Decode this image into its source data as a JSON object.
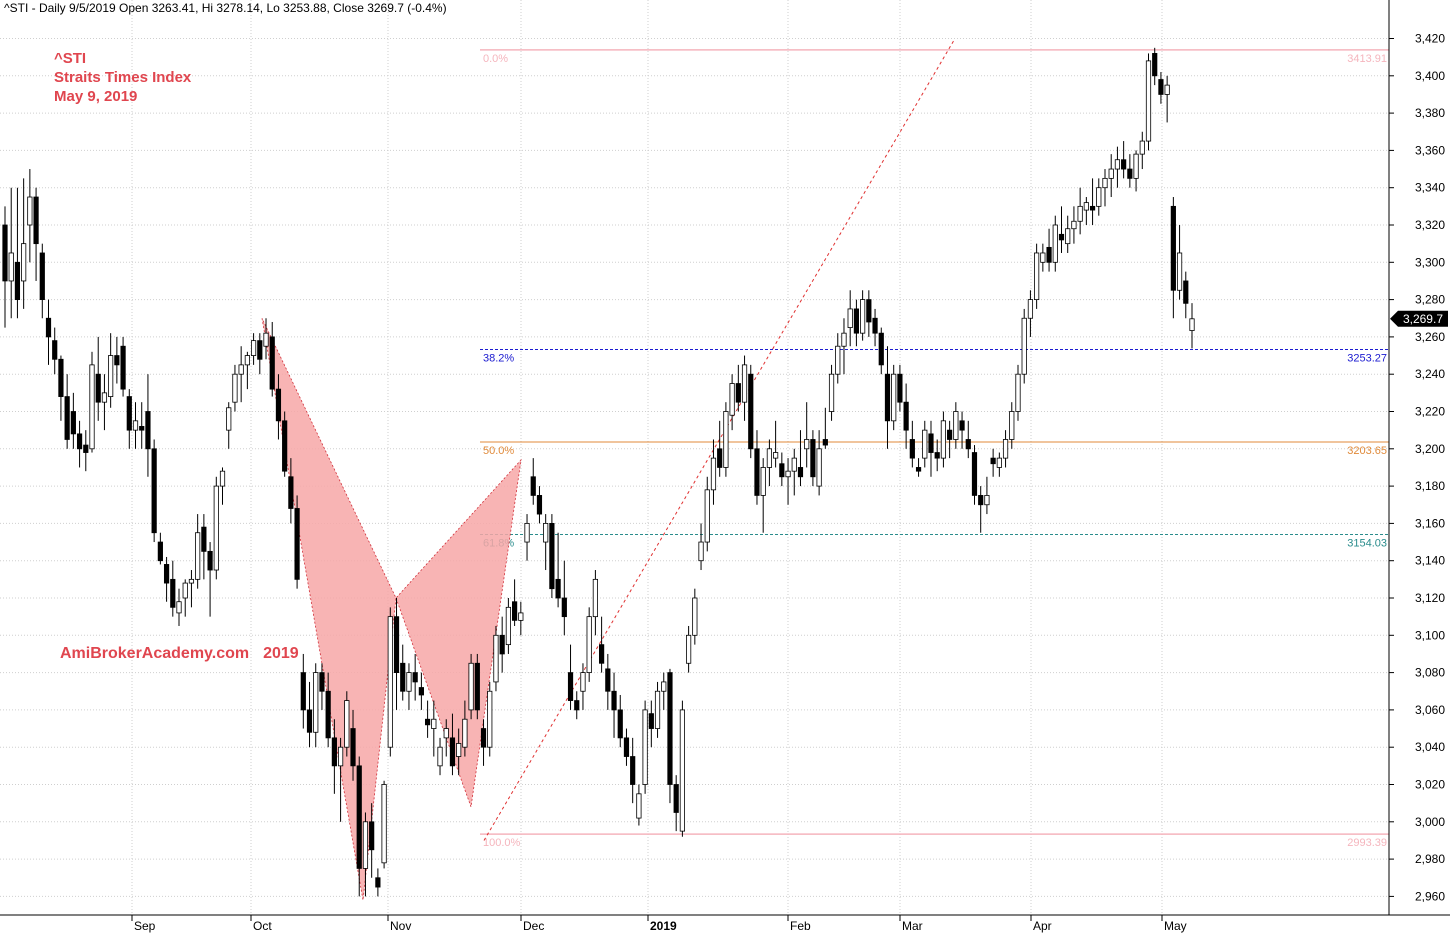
{
  "header": {
    "text": "^STI - Daily 9/5/2019 Open 3263.41, Hi 3278.14, Lo 3253.88, Close 3269.7 (-0.4%)"
  },
  "annotations": {
    "symbol": "^STI",
    "name": "Straits Times Index",
    "date": "May 9, 2019",
    "watermark_site": "AmiBrokerAcademy.com",
    "watermark_year": "2019"
  },
  "colors": {
    "up_candle": "#ffffff",
    "down_candle": "#000000",
    "fib_0_100": "#f5b5bd",
    "fib_382": "#1c1cd0",
    "fib_50": "#e08a3a",
    "fib_618": "#2a8c8c",
    "pattern_fill": "#f7a7a7",
    "pattern_line": "#d0303a",
    "annotation_text": "#e0464f"
  },
  "chart_data": {
    "type": "candlestick",
    "x_labels": [
      "Sep",
      "Oct",
      "Nov",
      "Dec",
      "2019",
      "Feb",
      "Mar",
      "Apr",
      "May"
    ],
    "y_ticks": [
      2960,
      2980,
      3000,
      3020,
      3040,
      3060,
      3080,
      3100,
      3120,
      3140,
      3160,
      3180,
      3200,
      3220,
      3240,
      3260,
      3280,
      3300,
      3320,
      3340,
      3360,
      3380,
      3400,
      3420
    ],
    "y_tick_labels": [
      "2,960",
      "2,980",
      "3,000",
      "3,020",
      "3,040",
      "3,060",
      "3,080",
      "3,100",
      "3,120",
      "3,140",
      "3,160",
      "3,180",
      "3,200",
      "3,220",
      "3,240",
      "3,260",
      "3,280",
      "3,300",
      "3,320",
      "3,340",
      "3,360",
      "3,380",
      "3,400",
      "3,420"
    ],
    "ylim": [
      2946,
      3427
    ],
    "grid": true,
    "last_close_label": "3,269.7",
    "last_close": 3269.7,
    "fibonacci": [
      {
        "pct": "0.0%",
        "value": 3413.91,
        "value_label": "3413.91"
      },
      {
        "pct": "38.2%",
        "value": 3253.27,
        "value_label": "3253.27"
      },
      {
        "pct": "50.0%",
        "value": 3203.65,
        "value_label": "3203.65"
      },
      {
        "pct": "61.8%",
        "value": 3154.03,
        "value_label": "3154.03"
      },
      {
        "pct": "100.0%",
        "value": 2993.39,
        "value_label": "2993.39"
      }
    ],
    "candles": [
      [
        3320,
        3330,
        3265,
        3290
      ],
      [
        3290,
        3340,
        3270,
        3305
      ],
      [
        3300,
        3340,
        3270,
        3280
      ],
      [
        3290,
        3345,
        3275,
        3310
      ],
      [
        3320,
        3350,
        3300,
        3335
      ],
      [
        3335,
        3340,
        3290,
        3310
      ],
      [
        3305,
        3310,
        3270,
        3280
      ],
      [
        3270,
        3280,
        3245,
        3260
      ],
      [
        3258,
        3265,
        3240,
        3248
      ],
      [
        3248,
        3250,
        3215,
        3228
      ],
      [
        3228,
        3240,
        3200,
        3205
      ],
      [
        3220,
        3230,
        3200,
        3208
      ],
      [
        3208,
        3215,
        3190,
        3200
      ],
      [
        3202,
        3210,
        3188,
        3198
      ],
      [
        3200,
        3252,
        3198,
        3245
      ],
      [
        3240,
        3260,
        3215,
        3225
      ],
      [
        3225,
        3240,
        3210,
        3230
      ],
      [
        3228,
        3262,
        3222,
        3250
      ],
      [
        3250,
        3260,
        3235,
        3245
      ],
      [
        3255,
        3260,
        3228,
        3232
      ],
      [
        3228,
        3232,
        3200,
        3210
      ],
      [
        3210,
        3225,
        3200,
        3215
      ],
      [
        3212,
        3225,
        3200,
        3210
      ],
      [
        3220,
        3240,
        3185,
        3200
      ],
      [
        3200,
        3205,
        3150,
        3155
      ],
      [
        3150,
        3155,
        3138,
        3140
      ],
      [
        3138,
        3142,
        3118,
        3128
      ],
      [
        3130,
        3140,
        3110,
        3115
      ],
      [
        3112,
        3125,
        3105,
        3118
      ],
      [
        3120,
        3130,
        3110,
        3128
      ],
      [
        3128,
        3135,
        3115,
        3130
      ],
      [
        3130,
        3165,
        3125,
        3155
      ],
      [
        3158,
        3165,
        3130,
        3145
      ],
      [
        3145,
        3150,
        3110,
        3135
      ],
      [
        3135,
        3185,
        3130,
        3180
      ],
      [
        3180,
        3190,
        3170,
        3188
      ],
      [
        3210,
        3225,
        3200,
        3222
      ],
      [
        3225,
        3245,
        3220,
        3240
      ],
      [
        3240,
        3255,
        3225,
        3245
      ],
      [
        3245,
        3252,
        3232,
        3250
      ],
      [
        3250,
        3262,
        3245,
        3258
      ],
      [
        3258,
        3262,
        3240,
        3248
      ],
      [
        3255,
        3270,
        3248,
        3262
      ],
      [
        3260,
        3268,
        3228,
        3232
      ],
      [
        3232,
        3240,
        3205,
        3215
      ],
      [
        3215,
        3220,
        3185,
        3188
      ],
      [
        3185,
        3195,
        3160,
        3168
      ],
      [
        3168,
        3175,
        3125,
        3130
      ],
      [
        3080,
        3090,
        3050,
        3060
      ],
      [
        3060,
        3075,
        3040,
        3048
      ],
      [
        3048,
        3085,
        3040,
        3080
      ],
      [
        3080,
        3085,
        3060,
        3070
      ],
      [
        3070,
        3080,
        3040,
        3045
      ],
      [
        3045,
        3055,
        3015,
        3030
      ],
      [
        3030,
        3045,
        3000,
        3040
      ],
      [
        3040,
        3070,
        3035,
        3065
      ],
      [
        3050,
        3060,
        3022,
        3030
      ],
      [
        3030,
        3035,
        2960,
        2975
      ],
      [
        2975,
        3005,
        2960,
        3000
      ],
      [
        3000,
        3010,
        2970,
        2985
      ],
      [
        2970,
        2975,
        2960,
        2965
      ],
      [
        2978,
        3022,
        2975,
        3020
      ],
      [
        3040,
        3115,
        3035,
        3110
      ],
      [
        3110,
        3120,
        3060,
        3080
      ],
      [
        3085,
        3095,
        3065,
        3070
      ],
      [
        3070,
        3085,
        3060,
        3080
      ],
      [
        3080,
        3090,
        3065,
        3075
      ],
      [
        3072,
        3080,
        3060,
        3068
      ],
      [
        3055,
        3065,
        3045,
        3052
      ],
      [
        3050,
        3065,
        3035,
        3055
      ],
      [
        3030,
        3045,
        3025,
        3040
      ],
      [
        3045,
        3055,
        3035,
        3050
      ],
      [
        3045,
        3058,
        3025,
        3030
      ],
      [
        3035,
        3050,
        3025,
        3042
      ],
      [
        3040,
        3065,
        3035,
        3055
      ],
      [
        3060,
        3090,
        3055,
        3085
      ],
      [
        3085,
        3090,
        3055,
        3060
      ],
      [
        3050,
        3055,
        3030,
        3040
      ],
      [
        3040,
        3075,
        3035,
        3070
      ],
      [
        3075,
        3105,
        3070,
        3100
      ],
      [
        3100,
        3110,
        3080,
        3090
      ],
      [
        3095,
        3120,
        3090,
        3115
      ],
      [
        3118,
        3130,
        3105,
        3108
      ],
      [
        3108,
        3118,
        3100,
        3112
      ],
      [
        3150,
        3165,
        3140,
        3160
      ],
      [
        3185,
        3195,
        3170,
        3175
      ],
      [
        3175,
        3180,
        3160,
        3165
      ],
      [
        3150,
        3165,
        3135,
        3160
      ],
      [
        3160,
        3165,
        3120,
        3125
      ],
      [
        3130,
        3155,
        3115,
        3120
      ],
      [
        3120,
        3140,
        3100,
        3110
      ],
      [
        3080,
        3095,
        3060,
        3065
      ],
      [
        3065,
        3070,
        3055,
        3060
      ],
      [
        3070,
        3085,
        3060,
        3080
      ],
      [
        3080,
        3115,
        3075,
        3110
      ],
      [
        3110,
        3135,
        3100,
        3130
      ],
      [
        3095,
        3110,
        3080,
        3085
      ],
      [
        3082,
        3090,
        3060,
        3070
      ],
      [
        3070,
        3080,
        3045,
        3060
      ],
      [
        3060,
        3068,
        3040,
        3045
      ],
      [
        3045,
        3050,
        3030,
        3035
      ],
      [
        3035,
        3045,
        3010,
        3020
      ],
      [
        3002,
        3020,
        2998,
        3015
      ],
      [
        3020,
        3065,
        3015,
        3060
      ],
      [
        3058,
        3065,
        3040,
        3050
      ],
      [
        3050,
        3075,
        3045,
        3070
      ],
      [
        3070,
        3080,
        3060,
        3075
      ],
      [
        3080,
        3082,
        3010,
        3020
      ],
      [
        3020,
        3025,
        2995,
        3005
      ],
      [
        2995,
        3065,
        2992,
        3060
      ],
      [
        3085,
        3105,
        3080,
        3100
      ],
      [
        3100,
        3125,
        3095,
        3120
      ],
      [
        3140,
        3160,
        3135,
        3150
      ],
      [
        3150,
        3185,
        3145,
        3178
      ],
      [
        3178,
        3205,
        3170,
        3195
      ],
      [
        3200,
        3215,
        3185,
        3190
      ],
      [
        3190,
        3225,
        3185,
        3220
      ],
      [
        3218,
        3240,
        3210,
        3235
      ],
      [
        3235,
        3245,
        3220,
        3225
      ],
      [
        3225,
        3250,
        3215,
        3245
      ],
      [
        3240,
        3245,
        3195,
        3200
      ],
      [
        3200,
        3210,
        3170,
        3175
      ],
      [
        3175,
        3195,
        3155,
        3190
      ],
      [
        3190,
        3205,
        3180,
        3200
      ],
      [
        3195,
        3215,
        3190,
        3198
      ],
      [
        3192,
        3198,
        3180,
        3185
      ],
      [
        3185,
        3195,
        3170,
        3188
      ],
      [
        3188,
        3200,
        3175,
        3195
      ],
      [
        3190,
        3210,
        3180,
        3185
      ],
      [
        3200,
        3225,
        3190,
        3205
      ],
      [
        3205,
        3210,
        3180,
        3185
      ],
      [
        3180,
        3210,
        3175,
        3200
      ],
      [
        3205,
        3222,
        3200,
        3202
      ],
      [
        3220,
        3245,
        3215,
        3240
      ],
      [
        3240,
        3262,
        3235,
        3255
      ],
      [
        3255,
        3270,
        3240,
        3262
      ],
      [
        3265,
        3285,
        3255,
        3275
      ],
      [
        3275,
        3280,
        3255,
        3262
      ],
      [
        3262,
        3285,
        3258,
        3280
      ],
      [
        3280,
        3285,
        3260,
        3268
      ],
      [
        3270,
        3275,
        3255,
        3262
      ],
      [
        3262,
        3265,
        3240,
        3245
      ],
      [
        3240,
        3255,
        3200,
        3215
      ],
      [
        3215,
        3245,
        3210,
        3240
      ],
      [
        3240,
        3245,
        3220,
        3225
      ],
      [
        3225,
        3235,
        3200,
        3210
      ],
      [
        3205,
        3215,
        3190,
        3195
      ],
      [
        3190,
        3195,
        3185,
        3188
      ],
      [
        3195,
        3215,
        3190,
        3210
      ],
      [
        3208,
        3215,
        3185,
        3198
      ],
      [
        3198,
        3205,
        3188,
        3195
      ],
      [
        3195,
        3220,
        3190,
        3215
      ],
      [
        3210,
        3215,
        3195,
        3205
      ],
      [
        3205,
        3225,
        3200,
        3220
      ],
      [
        3215,
        3220,
        3200,
        3210
      ],
      [
        3205,
        3215,
        3195,
        3200
      ],
      [
        3198,
        3202,
        3170,
        3175
      ],
      [
        3175,
        3180,
        3155,
        3170
      ],
      [
        3170,
        3185,
        3165,
        3175
      ],
      [
        3195,
        3200,
        3185,
        3192
      ],
      [
        3190,
        3198,
        3185,
        3195
      ],
      [
        3195,
        3210,
        3190,
        3205
      ],
      [
        3205,
        3225,
        3200,
        3220
      ],
      [
        3220,
        3245,
        3215,
        3240
      ],
      [
        3240,
        3275,
        3235,
        3270
      ],
      [
        3270,
        3285,
        3260,
        3280
      ],
      [
        3280,
        3310,
        3275,
        3305
      ],
      [
        3300,
        3310,
        3295,
        3305
      ],
      [
        3308,
        3318,
        3295,
        3300
      ],
      [
        3300,
        3325,
        3295,
        3320
      ],
      [
        3315,
        3330,
        3305,
        3312
      ],
      [
        3310,
        3325,
        3305,
        3318
      ],
      [
        3318,
        3330,
        3310,
        3322
      ],
      [
        3322,
        3340,
        3315,
        3330
      ],
      [
        3328,
        3335,
        3320,
        3332
      ],
      [
        3330,
        3345,
        3320,
        3328
      ],
      [
        3330,
        3345,
        3325,
        3340
      ],
      [
        3340,
        3350,
        3330,
        3345
      ],
      [
        3345,
        3358,
        3335,
        3350
      ],
      [
        3350,
        3362,
        3340,
        3355
      ],
      [
        3355,
        3365,
        3345,
        3350
      ],
      [
        3350,
        3358,
        3340,
        3345
      ],
      [
        3345,
        3360,
        3338,
        3358
      ],
      [
        3358,
        3370,
        3350,
        3365
      ],
      [
        3365,
        3412,
        3360,
        3408
      ],
      [
        3412,
        3415,
        3395,
        3400
      ],
      [
        3398,
        3402,
        3385,
        3390
      ],
      [
        3390,
        3400,
        3375,
        3395
      ],
      [
        3330,
        3335,
        3270,
        3285
      ],
      [
        3285,
        3320,
        3280,
        3305
      ],
      [
        3290,
        3295,
        3270,
        3278
      ],
      [
        3263.41,
        3278.14,
        3253.88,
        3269.7
      ]
    ]
  }
}
